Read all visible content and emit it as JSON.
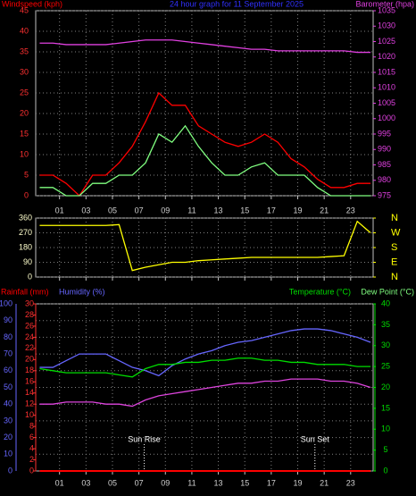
{
  "chart_data": [
    {
      "type": "line",
      "title": "24 hour graph for 11 September 2025",
      "xlim": [
        -0.8,
        24.7
      ],
      "xticks": [
        {
          "value": 1,
          "label": "01"
        },
        {
          "value": 3,
          "label": "03"
        },
        {
          "value": 5,
          "label": "05"
        },
        {
          "value": 7,
          "label": "07"
        },
        {
          "value": 9,
          "label": "09"
        },
        {
          "value": 11,
          "label": "11"
        },
        {
          "value": 13,
          "label": "13"
        },
        {
          "value": 15,
          "label": "15"
        },
        {
          "value": 17,
          "label": "17"
        },
        {
          "value": 19,
          "label": "19"
        },
        {
          "value": 21,
          "label": "21"
        },
        {
          "value": 23,
          "label": "23"
        }
      ],
      "y_label": "Windspeed (kph)",
      "ylim": [
        0,
        45
      ],
      "yticks": [
        0,
        5,
        10,
        15,
        20,
        25,
        30,
        35,
        40,
        45
      ],
      "y2lim": [
        975,
        1035
      ],
      "y2ticks": [
        975,
        980,
        985,
        990,
        995,
        1000,
        1005,
        1010,
        1015,
        1020,
        1025,
        1030,
        1035
      ],
      "grid": true,
      "x": [
        -0.5,
        0.5,
        1.5,
        2.5,
        3.5,
        4.5,
        5.5,
        6.5,
        7.5,
        8.5,
        9.5,
        10.5,
        11.5,
        12.5,
        13.5,
        14.5,
        15.5,
        16.5,
        17.5,
        18.5,
        19.5,
        20.5,
        21.5,
        22.5,
        23.5,
        24.5
      ],
      "series": [
        {
          "color": "#ff0000",
          "axis": "y",
          "values": [
            5,
            5,
            3,
            0,
            5,
            5,
            8,
            12,
            18,
            25,
            22,
            22,
            17,
            15,
            13,
            12,
            13,
            15,
            13,
            9,
            7,
            4,
            2,
            2,
            3,
            3
          ]
        },
        {
          "color": "#80ff80",
          "axis": "y",
          "values": [
            2,
            2,
            0,
            0,
            3,
            3,
            5,
            5,
            8,
            15,
            13,
            17,
            12,
            8,
            5,
            5,
            7,
            8,
            5,
            5,
            5,
            2,
            0,
            0,
            0,
            0
          ]
        },
        {
          "name": "Barometer (hpa)",
          "color": "#e040e0",
          "axis": "y2",
          "values": [
            1024.5,
            1024.5,
            1024,
            1024,
            1024,
            1024,
            1024.5,
            1025,
            1025.5,
            1025.5,
            1025.5,
            1025,
            1024.5,
            1024,
            1023.5,
            1023,
            1022.5,
            1022.5,
            1022,
            1022,
            1022,
            1022,
            1022,
            1022,
            1021.5,
            1021.5
          ]
        }
      ]
    },
    {
      "type": "line",
      "xlim": [
        -0.8,
        24.7
      ],
      "xticks": [
        1,
        3,
        5,
        7,
        9,
        11,
        13,
        15,
        17,
        19,
        21,
        23
      ],
      "ylim": [
        0,
        360
      ],
      "yticks": [
        0,
        90,
        180,
        270,
        360
      ],
      "y2lim": [
        0,
        360
      ],
      "y2ticks": [
        {
          "value": 0,
          "label": "N"
        },
        {
          "value": 90,
          "label": "E"
        },
        {
          "value": 180,
          "label": "S"
        },
        {
          "value": 270,
          "label": "W"
        },
        {
          "value": 360,
          "label": "N"
        }
      ],
      "grid": true,
      "x": [
        -0.5,
        0.5,
        1.5,
        2.5,
        3.5,
        4.5,
        5.5,
        6.5,
        7.5,
        8.5,
        9.5,
        10.5,
        11.5,
        12.5,
        13.5,
        14.5,
        15.5,
        16.5,
        17.5,
        18.5,
        19.5,
        20.5,
        21.5,
        22.5,
        23.5,
        24.5
      ],
      "series": [
        {
          "color": "#ffff00",
          "axis": "y",
          "values": [
            315,
            315,
            315,
            315,
            315,
            315,
            320,
            40,
            60,
            75,
            90,
            90,
            100,
            105,
            110,
            115,
            120,
            120,
            120,
            120,
            120,
            120,
            125,
            130,
            340,
            270
          ]
        }
      ]
    },
    {
      "type": "line",
      "xlim": [
        -0.8,
        24.7
      ],
      "xticks": [
        {
          "value": 1,
          "label": "01"
        },
        {
          "value": 3,
          "label": "03"
        },
        {
          "value": 5,
          "label": "05"
        },
        {
          "value": 7,
          "label": "07"
        },
        {
          "value": 9,
          "label": "09"
        },
        {
          "value": 11,
          "label": "11"
        },
        {
          "value": 13,
          "label": "13"
        },
        {
          "value": 15,
          "label": "15"
        },
        {
          "value": 17,
          "label": "17"
        },
        {
          "value": 19,
          "label": "19"
        },
        {
          "value": 21,
          "label": "21"
        },
        {
          "value": 23,
          "label": "23"
        }
      ],
      "ylim": [
        0,
        100
      ],
      "yticks": [
        0,
        10,
        20,
        30,
        40,
        50,
        60,
        70,
        80,
        90,
        100
      ],
      "y2lim": [
        0,
        40
      ],
      "y2ticks": [
        0,
        5,
        10,
        15,
        20,
        25,
        30,
        35,
        40
      ],
      "y3lim": [
        0,
        30
      ],
      "y3ticks": [
        0,
        2,
        4,
        6,
        8,
        10,
        12,
        14,
        16,
        18,
        20,
        22,
        24,
        26,
        28,
        30
      ],
      "grid": true,
      "annotations": [
        {
          "text": "Sun Rise",
          "x": 7.4
        },
        {
          "text": "Sun Set",
          "x": 20.3
        }
      ],
      "x": [
        -0.5,
        0.5,
        1.5,
        2.5,
        3.5,
        4.5,
        5.5,
        6.5,
        7.5,
        8.5,
        9.5,
        10.5,
        11.5,
        12.5,
        13.5,
        14.5,
        15.5,
        16.5,
        17.5,
        18.5,
        19.5,
        20.5,
        21.5,
        22.5,
        23.5,
        24.5
      ],
      "series": [
        {
          "name": "Rainfall (mm)",
          "color": "#ff0000",
          "axis": "y3",
          "values": [
            0,
            0,
            0,
            0,
            0,
            0,
            0,
            0,
            0,
            0,
            0,
            0,
            0,
            0,
            0,
            0,
            0,
            0,
            0,
            0,
            0,
            0,
            0,
            0,
            0,
            0
          ]
        },
        {
          "name": "Humidity (%)",
          "color": "#6666ff",
          "axis": "y",
          "values": [
            62,
            62,
            66,
            70,
            70,
            70,
            66,
            62,
            60,
            57,
            63,
            67,
            70,
            72,
            75,
            77,
            78,
            80,
            82,
            84,
            85,
            85,
            84,
            82,
            80,
            77
          ]
        },
        {
          "name": "Temperature (°C)",
          "color": "#00dd00",
          "axis": "y2",
          "values": [
            24.5,
            24,
            23.5,
            23.5,
            23.5,
            23.5,
            23,
            22.5,
            24.5,
            25.5,
            25.5,
            26,
            26,
            26.5,
            26.5,
            27,
            27,
            26.5,
            26.5,
            26,
            26,
            25.5,
            25.5,
            25.5,
            25,
            25
          ]
        },
        {
          "name": "Dew Point (°C)",
          "color": "#dd44dd",
          "axis": "y2",
          "values": [
            16,
            16,
            16.5,
            16.5,
            16.5,
            16,
            16,
            15.5,
            17,
            18,
            18.5,
            19,
            19.5,
            20,
            20.5,
            21,
            21,
            21.5,
            21.5,
            22,
            22,
            22,
            21.5,
            21.5,
            21,
            20
          ]
        }
      ]
    }
  ]
}
